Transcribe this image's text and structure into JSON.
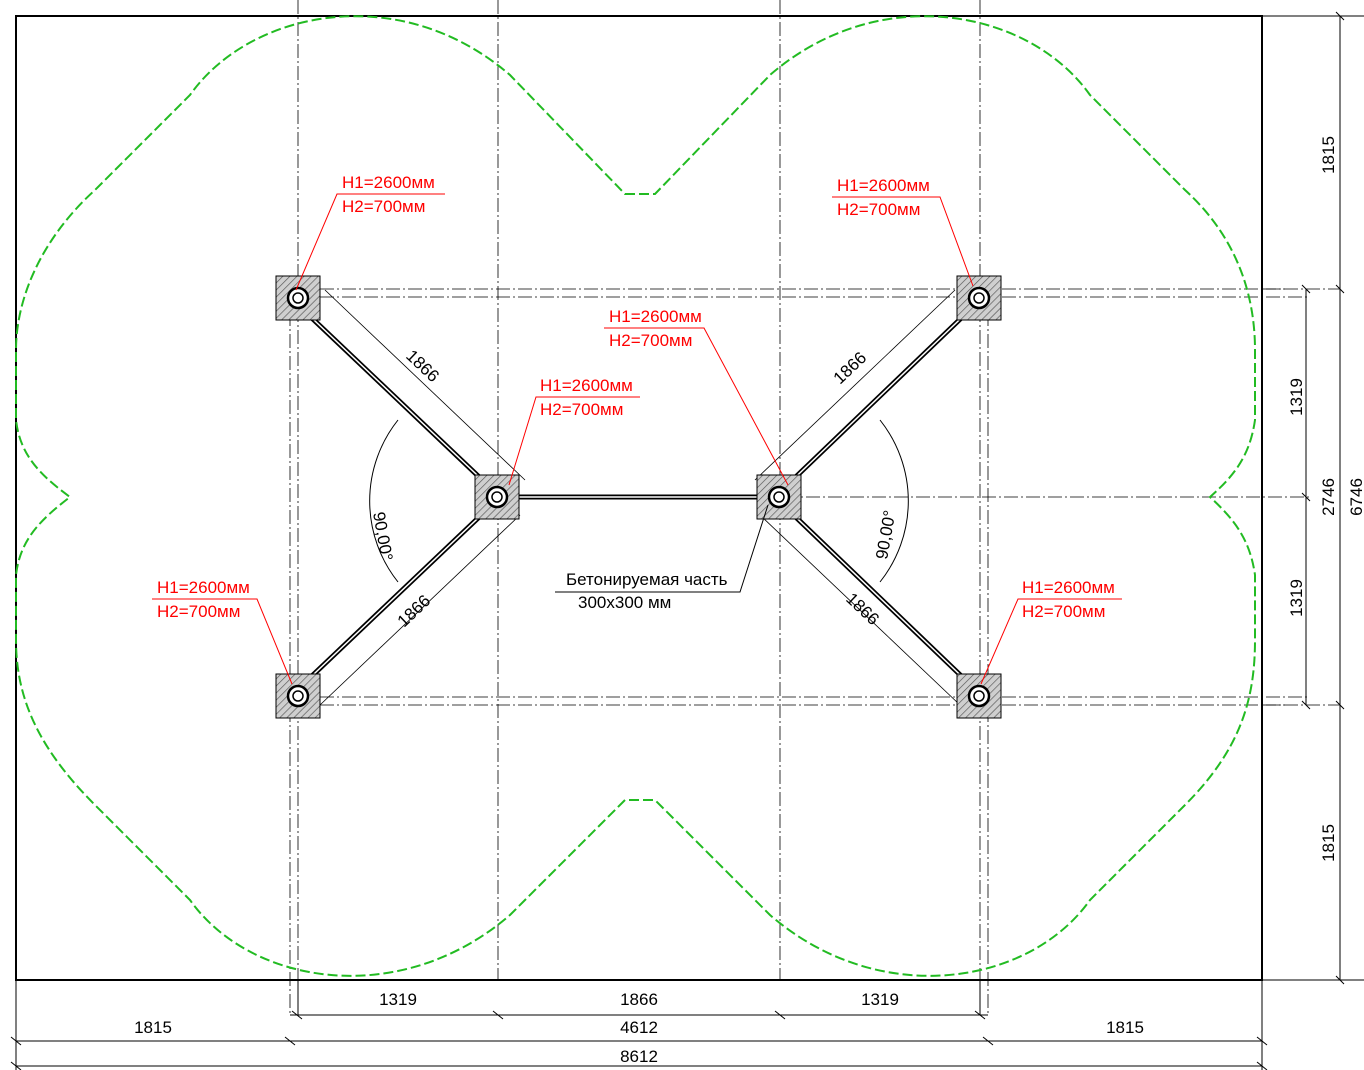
{
  "colors": {
    "outline": "#000000",
    "callout": "#ff0000",
    "safety_zone": "#22bb22",
    "hatch": "#444444"
  },
  "post_labels": {
    "h1": "H1=2600мм",
    "h2": "H2=700мм"
  },
  "beam_length_labels": [
    "1866",
    "1866",
    "1866",
    "1866"
  ],
  "angle_labels": [
    "90,00°",
    "90,00°"
  ],
  "concrete_note": {
    "line1": "Бетонируемая часть",
    "line2": "300x300 мм"
  },
  "dimensions": {
    "bottom_inner": [
      "1319",
      "1866",
      "1319"
    ],
    "bottom_middle": [
      "1815",
      "4612",
      "1815"
    ],
    "bottom_total": "8612",
    "right_inner": [
      "1319",
      "1319"
    ],
    "right_middle_total": "2746",
    "right_outer": [
      "1815",
      "1815"
    ],
    "right_total": "6746"
  }
}
